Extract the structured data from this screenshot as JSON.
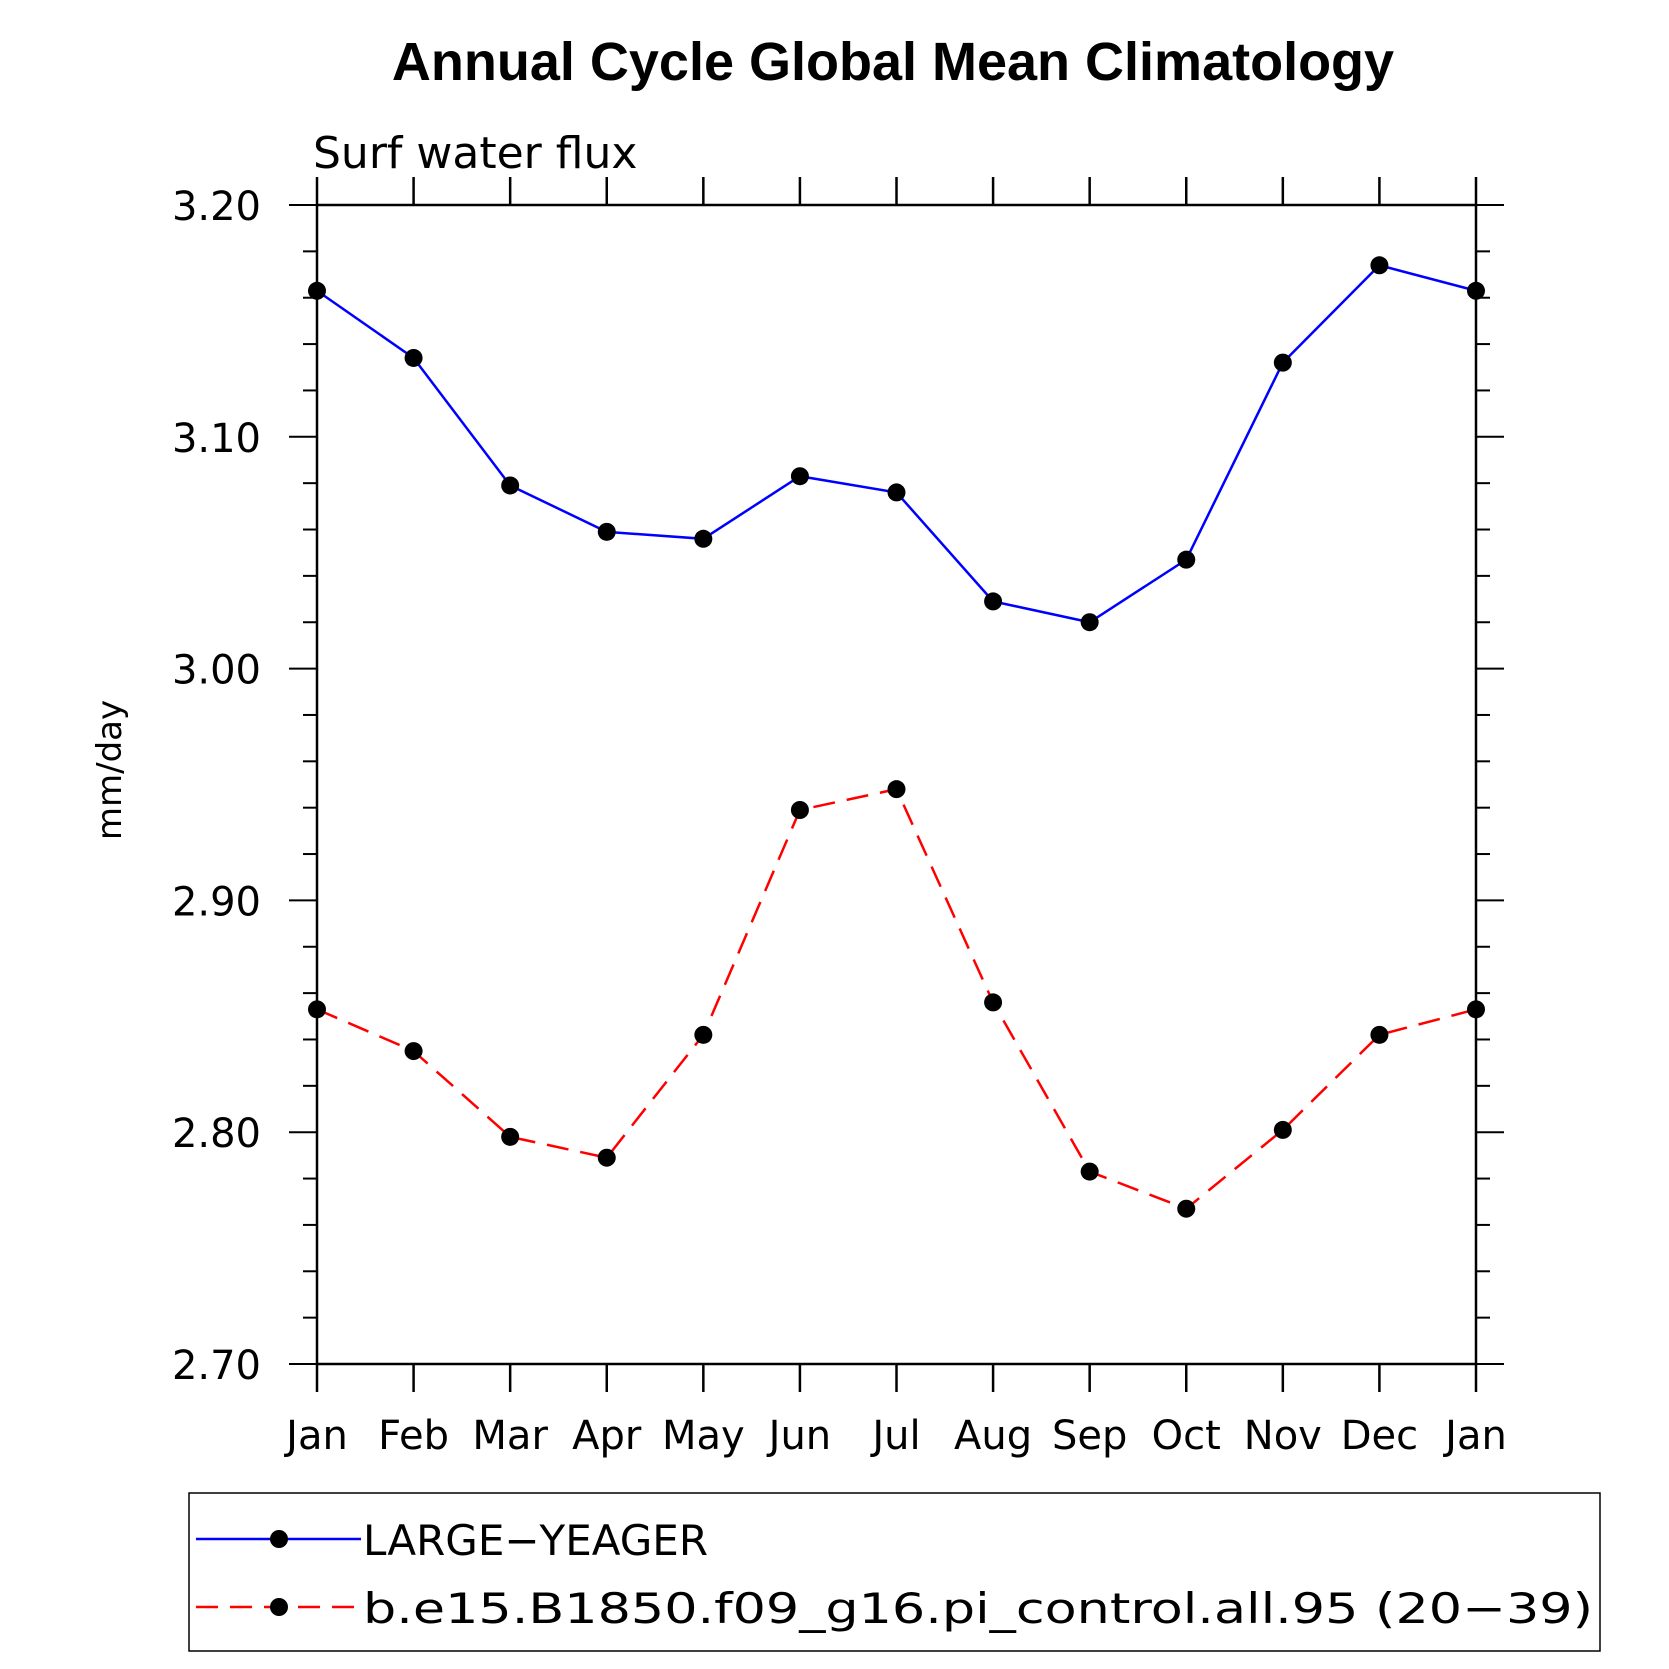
{
  "chart_data": {
    "type": "line",
    "title": "Annual Cycle Global Mean Climatology",
    "subtitle": "Surf water flux",
    "ylabel": "mm/day",
    "xlabel": "",
    "categories": [
      "Jan",
      "Feb",
      "Mar",
      "Apr",
      "May",
      "Jun",
      "Jul",
      "Aug",
      "Sep",
      "Oct",
      "Nov",
      "Dec",
      "Jan"
    ],
    "ylim": [
      2.7,
      3.2
    ],
    "yticks": [
      "3.20",
      "3.10",
      "3.00",
      "2.90",
      "2.80",
      "2.70"
    ],
    "ytick_values": [
      3.2,
      3.1,
      3.0,
      2.9,
      2.8,
      2.7
    ],
    "legend_position": "bottom",
    "series": [
      {
        "name": "LARGE−YEAGER",
        "color": "#0000ff",
        "style": "solid",
        "values": [
          3.163,
          3.134,
          3.079,
          3.059,
          3.056,
          3.083,
          3.076,
          3.029,
          3.02,
          3.047,
          3.132,
          3.174,
          3.163
        ]
      },
      {
        "name": "b.e15.B1850.f09_g16.pi_control.all.95 (20−39)",
        "color": "#ff0000",
        "style": "dashed",
        "values": [
          2.853,
          2.835,
          2.798,
          2.789,
          2.842,
          2.939,
          2.948,
          2.856,
          2.783,
          2.767,
          2.801,
          2.842,
          2.853
        ]
      }
    ]
  }
}
